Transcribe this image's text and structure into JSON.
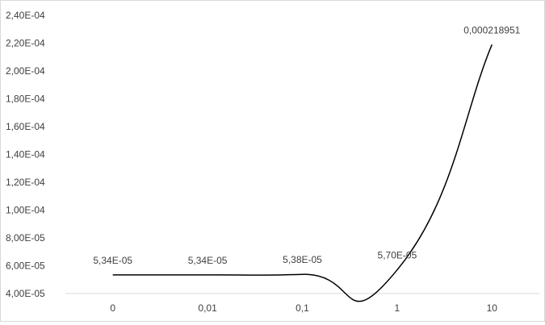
{
  "chart_data": {
    "type": "line",
    "categories": [
      "0",
      "0,01",
      "0,1",
      "1",
      "10"
    ],
    "series": [
      {
        "values": [
          5.34e-05,
          5.34e-05,
          5.38e-05,
          5.7e-05,
          0.000218951
        ],
        "data_labels": [
          "5,34E-05",
          "5,34E-05",
          "5,38E-05",
          "5,70E-05",
          "0,000218951"
        ]
      }
    ],
    "y_ticks": [
      "4,00E-05",
      "6,00E-05",
      "8,00E-05",
      "1,00E-04",
      "1,20E-04",
      "1,40E-04",
      "1,60E-04",
      "1,80E-04",
      "2,00E-04",
      "2,20E-04",
      "2,40E-04"
    ],
    "y_tick_values": [
      4e-05,
      6e-05,
      8e-05,
      0.0001,
      0.00012,
      0.00014,
      0.00016,
      0.00018,
      0.0002,
      0.00022,
      0.00024
    ],
    "ylim": [
      4e-05,
      0.00024
    ],
    "title": "",
    "xlabel": "",
    "ylabel": "",
    "grid": false,
    "smooth": true,
    "line_color": "#000000"
  }
}
